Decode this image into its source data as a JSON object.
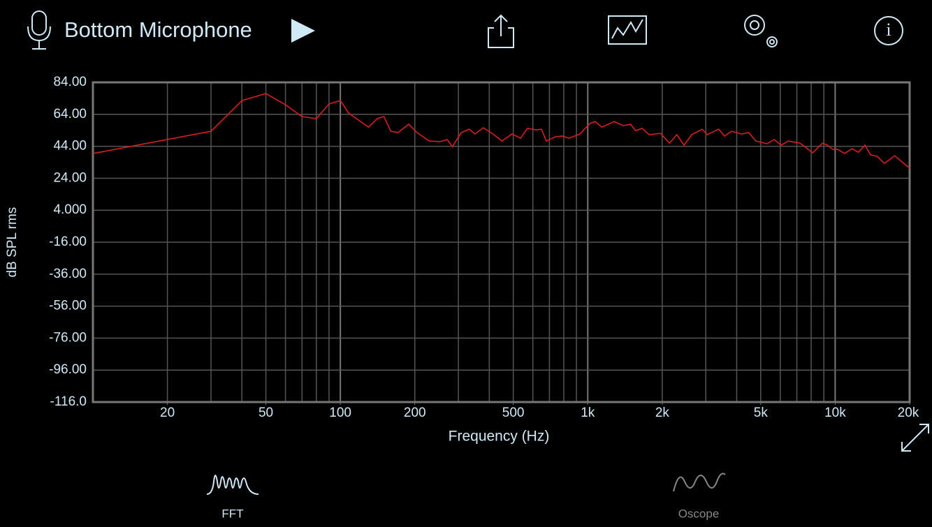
{
  "header": {
    "source": "Bottom Microphone"
  },
  "chart_data": {
    "type": "line",
    "log_x": true,
    "grid": true,
    "xlabel": "Frequency (Hz)",
    "ylabel": "dB SPL rms",
    "xlim": [
      10,
      20000
    ],
    "ylim": [
      -116,
      84
    ],
    "xticks": [
      20,
      50,
      100,
      200,
      500,
      {
        "value": 1000,
        "label": "1k"
      },
      {
        "value": 2000,
        "label": "2k"
      },
      {
        "value": 5000,
        "label": "5k"
      },
      {
        "value": 10000,
        "label": "10k"
      },
      {
        "value": 20000,
        "label": "20k"
      }
    ],
    "xgrid": [
      20,
      30,
      40,
      50,
      60,
      70,
      80,
      90,
      100,
      200,
      300,
      400,
      500,
      600,
      700,
      800,
      900,
      1000,
      2000,
      3000,
      4000,
      5000,
      6000,
      7000,
      8000,
      9000,
      10000
    ],
    "yticks": [
      {
        "value": 84,
        "label": "84.00"
      },
      {
        "value": 64,
        "label": "64.00"
      },
      {
        "value": 44,
        "label": "44.00"
      },
      {
        "value": 24,
        "label": "24.00"
      },
      {
        "value": 4,
        "label": "4.000"
      },
      {
        "value": -16,
        "label": "-16.00"
      },
      {
        "value": -36,
        "label": "-36.00"
      },
      {
        "value": -56,
        "label": "-56.00"
      },
      {
        "value": -76,
        "label": "-76.00"
      },
      {
        "value": -96,
        "label": "-96.00"
      },
      {
        "value": -116,
        "label": "-116.0"
      }
    ],
    "x": [
      10,
      30,
      40,
      50,
      60,
      70,
      80,
      90,
      100,
      108,
      130,
      141,
      150,
      160,
      171,
      189,
      204,
      229,
      253,
      270,
      284,
      308,
      332,
      350,
      378,
      414,
      450,
      494,
      535,
      570,
      620,
      650,
      680,
      740,
      790,
      840,
      930,
      1020,
      1070,
      1140,
      1280,
      1390,
      1490,
      1560,
      1660,
      1770,
      1970,
      2140,
      2290,
      2450,
      2630,
      2900,
      3040,
      3380,
      3570,
      3810,
      4190,
      4470,
      4780,
      5310,
      5670,
      6050,
      6460,
      7200,
      7540,
      8110,
      8890,
      9310,
      9780,
      10250,
      10900,
      11700,
      12400,
      13200,
      13900,
      14800,
      15800,
      17400,
      20000
    ],
    "series": [
      {
        "color": "#d81e1e",
        "values": [
          39.5,
          53.4,
          72.6,
          77,
          70,
          62.6,
          61.3,
          70.5,
          72.6,
          64.8,
          56,
          61.3,
          62.6,
          53.4,
          52.6,
          57.8,
          52.6,
          47.3,
          46.9,
          48.2,
          43.8,
          52.6,
          54.7,
          51.7,
          55.6,
          51.7,
          47.3,
          51.7,
          49.1,
          55.2,
          54.3,
          54.7,
          47.3,
          50,
          50.4,
          49.1,
          51.7,
          58.2,
          59.5,
          56,
          59.5,
          56.9,
          57.8,
          53.8,
          55.2,
          51.3,
          52.1,
          46,
          51.3,
          44.7,
          51.3,
          54.7,
          51.3,
          54.7,
          50.4,
          53.4,
          51.7,
          52.6,
          47.3,
          45.6,
          48.2,
          44.7,
          47.3,
          46,
          43.8,
          39.9,
          46,
          44.7,
          42.1,
          42.1,
          39.5,
          42.5,
          40.3,
          44.7,
          38.6,
          37.7,
          33.3,
          38.1,
          30.3
        ]
      }
    ]
  },
  "tabs": [
    "FFT",
    "Oscope"
  ]
}
